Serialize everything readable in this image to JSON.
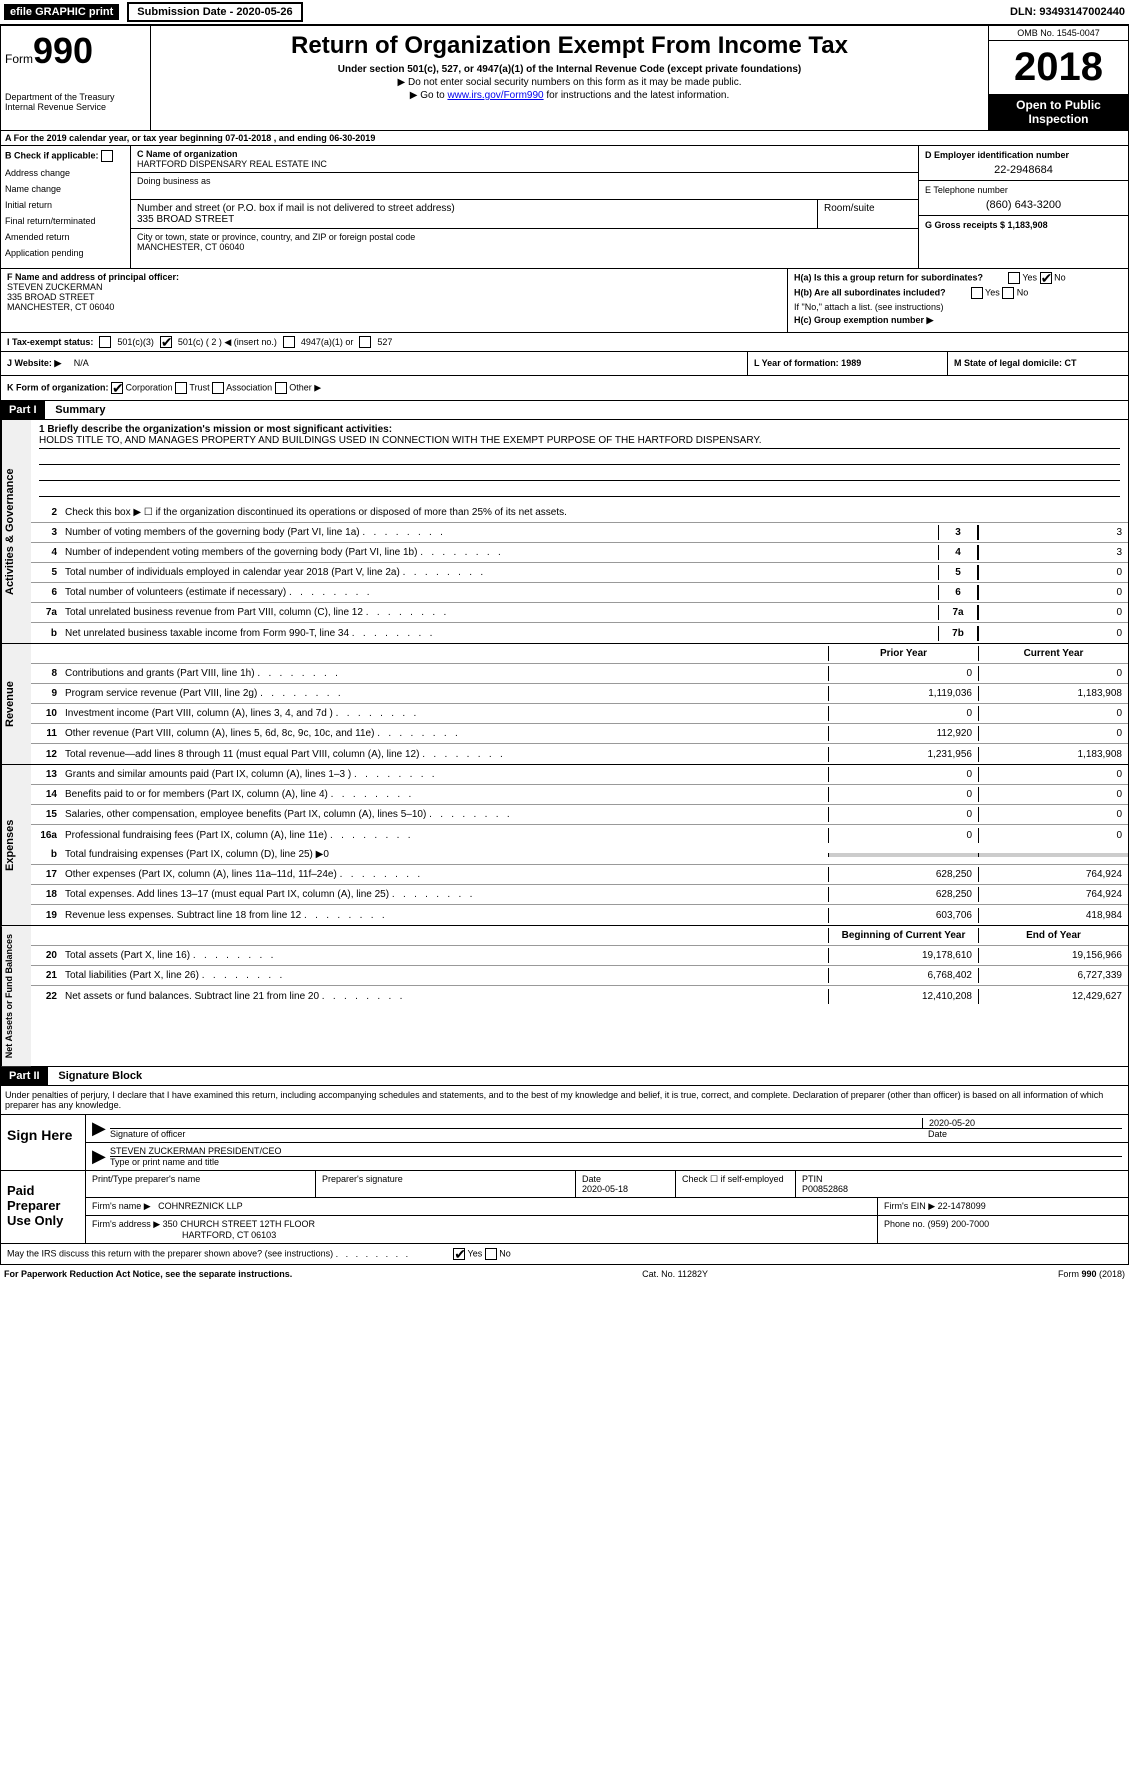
{
  "top": {
    "efile": "efile GRAPHIC print",
    "submission": "Submission Date - 2020-05-26",
    "dln": "DLN: 93493147002440"
  },
  "header": {
    "form_label": "Form",
    "form_num": "990",
    "dept": "Department of the Treasury",
    "irs": "Internal Revenue Service",
    "title": "Return of Organization Exempt From Income Tax",
    "subtitle": "Under section 501(c), 527, or 4947(a)(1) of the Internal Revenue Code (except private foundations)",
    "note1": "▶ Do not enter social security numbers on this form as it may be made public.",
    "note2_pre": "▶ Go to ",
    "note2_link": "www.irs.gov/Form990",
    "note2_post": " for instructions and the latest information.",
    "omb": "OMB No. 1545-0047",
    "year": "2018",
    "open": "Open to Public Inspection"
  },
  "rowA": "A   For the 2019 calendar year, or tax year beginning 07-01-2018         , and ending 06-30-2019",
  "colB": {
    "header": "B Check if applicable:",
    "addr_change": "Address change",
    "name_change": "Name change",
    "initial": "Initial return",
    "final": "Final return/terminated",
    "amended": "Amended return",
    "app_pending": "Application pending"
  },
  "colC": {
    "name_label": "C Name of organization",
    "name": "HARTFORD DISPENSARY REAL ESTATE INC",
    "dba_label": "Doing business as",
    "street_label": "Number and street (or P.O. box if mail is not delivered to street address)",
    "street": "335 BROAD STREET",
    "room_label": "Room/suite",
    "city_label": "City or town, state or province, country, and ZIP or foreign postal code",
    "city": "MANCHESTER, CT  06040"
  },
  "colD": {
    "label": "D Employer identification number",
    "value": "22-2948684"
  },
  "colE": {
    "label": "E Telephone number",
    "value": "(860) 643-3200"
  },
  "colG": {
    "label": "G Gross receipts $ 1,183,908"
  },
  "colF": {
    "label": "F Name and address of principal officer:",
    "name": "STEVEN ZUCKERMAN",
    "street": "335 BROAD STREET",
    "city": "MANCHESTER, CT  06040"
  },
  "colH": {
    "ha": "H(a)   Is this a group return for subordinates?",
    "hb": "H(b)   Are all subordinates included?",
    "hb_note": "If \"No,\" attach a list. (see instructions)",
    "hc": "H(c)   Group exemption number ▶"
  },
  "rowI": {
    "label": "I      Tax-exempt status:",
    "c3": "501(c)(3)",
    "c2": "501(c) ( 2 ) ◀ (insert no.)",
    "a1": "4947(a)(1) or",
    "s527": "527"
  },
  "rowJ": {
    "label": "J    Website: ▶",
    "value": "N/A"
  },
  "rowL": "L Year of formation: 1989",
  "rowM": "M State of legal domicile: CT",
  "rowK": {
    "label": "K Form of organization:",
    "corp": "Corporation",
    "trust": "Trust",
    "assoc": "Association",
    "other": "Other ▶"
  },
  "part1": {
    "header": "Part I",
    "title": "Summary",
    "side1": "Activities & Governance",
    "side2": "Revenue",
    "side3": "Expenses",
    "side4": "Net Assets or Fund Balances",
    "line1_label": "1  Briefly describe the organization's mission or most significant activities:",
    "line1_text": "HOLDS TITLE TO, AND MANAGES PROPERTY AND BUILDINGS USED IN CONNECTION WITH THE EXEMPT PURPOSE OF THE HARTFORD DISPENSARY.",
    "line2": "Check this box ▶ ☐ if the organization discontinued its operations or disposed of more than 25% of its net assets.",
    "lines_ag": [
      {
        "num": "3",
        "desc": "Number of voting members of the governing body (Part VI, line 1a)",
        "box": "3",
        "val": "3"
      },
      {
        "num": "4",
        "desc": "Number of independent voting members of the governing body (Part VI, line 1b)",
        "box": "4",
        "val": "3"
      },
      {
        "num": "5",
        "desc": "Total number of individuals employed in calendar year 2018 (Part V, line 2a)",
        "box": "5",
        "val": "0"
      },
      {
        "num": "6",
        "desc": "Total number of volunteers (estimate if necessary)",
        "box": "6",
        "val": "0"
      },
      {
        "num": "7a",
        "desc": "Total unrelated business revenue from Part VIII, column (C), line 12",
        "box": "7a",
        "val": "0"
      },
      {
        "num": "b",
        "desc": "Net unrelated business taxable income from Form 990-T, line 34",
        "box": "7b",
        "val": "0"
      }
    ],
    "prior_hdr": "Prior Year",
    "current_hdr": "Current Year",
    "lines_rev": [
      {
        "num": "8",
        "desc": "Contributions and grants (Part VIII, line 1h)",
        "prior": "0",
        "current": "0"
      },
      {
        "num": "9",
        "desc": "Program service revenue (Part VIII, line 2g)",
        "prior": "1,119,036",
        "current": "1,183,908"
      },
      {
        "num": "10",
        "desc": "Investment income (Part VIII, column (A), lines 3, 4, and 7d )",
        "prior": "0",
        "current": "0"
      },
      {
        "num": "11",
        "desc": "Other revenue (Part VIII, column (A), lines 5, 6d, 8c, 9c, 10c, and 11e)",
        "prior": "112,920",
        "current": "0"
      },
      {
        "num": "12",
        "desc": "Total revenue—add lines 8 through 11 (must equal Part VIII, column (A), line 12)",
        "prior": "1,231,956",
        "current": "1,183,908"
      }
    ],
    "lines_exp": [
      {
        "num": "13",
        "desc": "Grants and similar amounts paid (Part IX, column (A), lines 1–3 )",
        "prior": "0",
        "current": "0"
      },
      {
        "num": "14",
        "desc": "Benefits paid to or for members (Part IX, column (A), line 4)",
        "prior": "0",
        "current": "0"
      },
      {
        "num": "15",
        "desc": "Salaries, other compensation, employee benefits (Part IX, column (A), lines 5–10)",
        "prior": "0",
        "current": "0"
      },
      {
        "num": "16a",
        "desc": "Professional fundraising fees (Part IX, column (A), line 11e)",
        "prior": "0",
        "current": "0"
      }
    ],
    "line16b": "Total fundraising expenses (Part IX, column (D), line 25) ▶0",
    "lines_exp2": [
      {
        "num": "17",
        "desc": "Other expenses (Part IX, column (A), lines 11a–11d, 11f–24e)",
        "prior": "628,250",
        "current": "764,924"
      },
      {
        "num": "18",
        "desc": "Total expenses. Add lines 13–17 (must equal Part IX, column (A), line 25)",
        "prior": "628,250",
        "current": "764,924"
      },
      {
        "num": "19",
        "desc": "Revenue less expenses. Subtract line 18 from line 12",
        "prior": "603,706",
        "current": "418,984"
      }
    ],
    "begin_hdr": "Beginning of Current Year",
    "end_hdr": "End of Year",
    "lines_na": [
      {
        "num": "20",
        "desc": "Total assets (Part X, line 16)",
        "prior": "19,178,610",
        "current": "19,156,966"
      },
      {
        "num": "21",
        "desc": "Total liabilities (Part X, line 26)",
        "prior": "6,768,402",
        "current": "6,727,339"
      },
      {
        "num": "22",
        "desc": "Net assets or fund balances. Subtract line 21 from line 20",
        "prior": "12,410,208",
        "current": "12,429,627"
      }
    ]
  },
  "part2": {
    "header": "Part II",
    "title": "Signature Block",
    "declaration": "Under penalties of perjury, I declare that I have examined this return, including accompanying schedules and statements, and to the best of my knowledge and belief, it is true, correct, and complete. Declaration of preparer (other than officer) is based on all information of which preparer has any knowledge.",
    "sign_here": "Sign Here",
    "sig_officer": "Signature of officer",
    "sig_date": "2020-05-20",
    "date_label": "Date",
    "officer_name": "STEVEN ZUCKERMAN  PRESIDENT/CEO",
    "type_name": "Type or print name and title",
    "paid_prep": "Paid Preparer Use Only",
    "prep_name_label": "Print/Type preparer's name",
    "prep_sig_label": "Preparer's signature",
    "prep_date_label": "Date",
    "prep_date": "2020-05-18",
    "check_if": "Check ☐ if self-employed",
    "ptin_label": "PTIN",
    "ptin": "P00852868",
    "firm_name_label": "Firm's name     ▶",
    "firm_name": "COHNREZNICK LLP",
    "firm_ein_label": "Firm's EIN ▶",
    "firm_ein": "22-1478099",
    "firm_addr_label": "Firm's address ▶",
    "firm_addr1": "350 CHURCH STREET 12TH FLOOR",
    "firm_addr2": "HARTFORD, CT  06103",
    "phone_label": "Phone no.",
    "phone": "(959) 200-7000",
    "discuss": "May the IRS discuss this return with the preparer shown above? (see instructions)"
  },
  "footer": {
    "left": "For Paperwork Reduction Act Notice, see the separate instructions.",
    "center": "Cat. No. 11282Y",
    "right": "Form 990 (2018)"
  },
  "yn": {
    "yes": "Yes",
    "no": "No"
  }
}
